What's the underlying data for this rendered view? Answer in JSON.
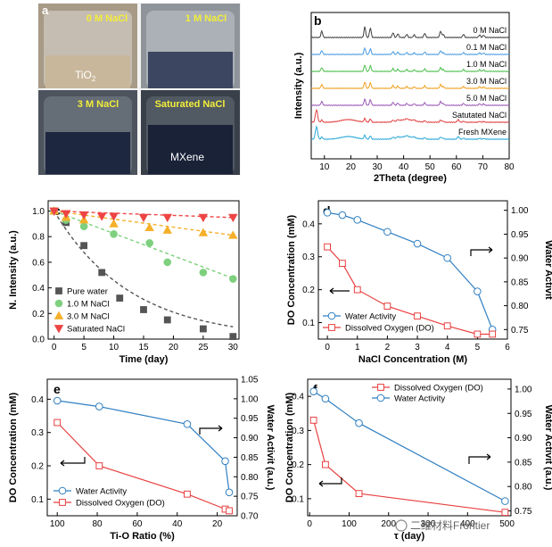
{
  "panel_a": {
    "letter": "a",
    "photos": [
      {
        "label": "0 M NaCl",
        "sublabel": "TiO",
        "subscript": "2",
        "bg": "#a79a86",
        "fill": "#c9b79b"
      },
      {
        "label": "1 M NaCl",
        "sublabel": "",
        "subscript": "",
        "bg": "#8e949a",
        "fill": "#3c4660"
      },
      {
        "label": "3 M NaCl",
        "sublabel": "",
        "subscript": "",
        "bg": "#4d545e",
        "fill": "#1e2740"
      },
      {
        "label": "Saturated NaCl",
        "sublabel": "MXene",
        "subscript": "",
        "bg": "#39404a",
        "fill": "#1a2238"
      }
    ],
    "label_color": "#f2ee3a"
  },
  "chart_data": [
    {
      "panel": "b",
      "type": "line",
      "title": "",
      "xlabel": "2Theta (degree)",
      "ylabel": "Intensity (a.u.)",
      "xlim": [
        5,
        80
      ],
      "xticks": [
        10,
        20,
        30,
        40,
        50,
        60,
        70,
        80
      ],
      "series": [
        {
          "name": "0 M NaCl",
          "color": "#404040"
        },
        {
          "name": "0.1 M NaCl",
          "color": "#4a9be0"
        },
        {
          "name": "1.0 M NaCl",
          "color": "#4cbf4c"
        },
        {
          "name": "3.0 M NaCl",
          "color": "#f0a020"
        },
        {
          "name": "5.0 M NaCl",
          "color": "#9b59b6"
        },
        {
          "name": "Satutated NaCl",
          "color": "#e04040"
        },
        {
          "name": "Fresh MXene",
          "color": "#2aa8d8"
        }
      ]
    },
    {
      "panel": "c",
      "type": "scatter",
      "title": "",
      "xlabel": "Time (day)",
      "ylabel": "N. Intensity (a.u.)",
      "xlim": [
        -1,
        31
      ],
      "ylim": [
        0,
        1.08
      ],
      "xticks": [
        0,
        5,
        10,
        15,
        20,
        25,
        30
      ],
      "yticks": [
        0.0,
        0.2,
        0.4,
        0.6,
        0.8,
        1.0
      ],
      "ytick_labels": [
        "0.0",
        "0.2",
        "0.4",
        "0.6",
        "0.8",
        "1.0"
      ],
      "series": [
        {
          "name": "Pure water",
          "color": "#555555",
          "marker": "square",
          "x": [
            0,
            2,
            5,
            8,
            11,
            15,
            19,
            25,
            30
          ],
          "y": [
            1.0,
            0.91,
            0.73,
            0.52,
            0.32,
            0.23,
            0.15,
            0.08,
            0.02
          ],
          "fit": {
            "type": "exp",
            "a": 1.0,
            "k": 0.078
          }
        },
        {
          "name": "1.0 M NaCl",
          "color": "#7ed07e",
          "marker": "circle",
          "x": [
            0,
            2,
            5,
            10,
            16,
            19,
            25,
            30
          ],
          "y": [
            1.0,
            0.93,
            0.88,
            0.82,
            0.75,
            0.6,
            0.52,
            0.47
          ],
          "fit": {
            "type": "linear",
            "a": 1.0,
            "b": -0.0175
          }
        },
        {
          "name": "3.0 M NaCl",
          "color": "#f5b02a",
          "marker": "triangle-up",
          "x": [
            0,
            2,
            5,
            10,
            16,
            19,
            25,
            30
          ],
          "y": [
            1.0,
            0.95,
            0.93,
            0.9,
            0.87,
            0.85,
            0.83,
            0.81
          ],
          "fit": {
            "type": "linear",
            "a": 1.0,
            "b": -0.0063
          }
        },
        {
          "name": "Saturated NaCl",
          "color": "#ee4444",
          "marker": "triangle-down",
          "x": [
            0,
            2,
            5,
            8,
            10,
            15,
            19,
            25,
            30
          ],
          "y": [
            1.0,
            0.98,
            0.97,
            0.96,
            0.96,
            0.95,
            0.95,
            0.95,
            0.95
          ],
          "fit": {
            "type": "linear",
            "a": 1.0,
            "b": -0.0017
          }
        }
      ]
    },
    {
      "panel": "d",
      "type": "line",
      "title": "",
      "xlabel": "NaCl Concentration (M)",
      "ylabel": "DO Concentration (mM)",
      "y2label": "Water Activit",
      "xlim": [
        -0.3,
        6
      ],
      "ylim": [
        0.05,
        0.47
      ],
      "y2lim": [
        0.73,
        1.02
      ],
      "xticks": [
        0,
        1,
        2,
        3,
        4,
        5,
        6
      ],
      "yticks": [
        0.1,
        0.2,
        0.3,
        0.4
      ],
      "y2ticks": [
        0.75,
        0.8,
        0.85,
        0.9,
        0.95,
        1.0
      ],
      "y2tick_labels": [
        "0.75",
        "0.80",
        "0.85",
        "0.90",
        "0.95",
        "1.00"
      ],
      "series": [
        {
          "name": "Water Activity",
          "color": "#2f7fc1",
          "marker": "circle",
          "axis": "y2",
          "x": [
            0,
            0.5,
            1,
            2,
            3,
            4,
            5,
            5.5
          ],
          "y": [
            0.995,
            0.99,
            0.98,
            0.955,
            0.93,
            0.9,
            0.83,
            0.75
          ]
        },
        {
          "name": "Dissolved Oxygen (DO)",
          "color": "#e84040",
          "marker": "square",
          "axis": "y",
          "x": [
            0,
            0.5,
            1,
            2,
            3,
            4,
            5,
            5.5
          ],
          "y": [
            0.33,
            0.28,
            0.2,
            0.15,
            0.12,
            0.09,
            0.065,
            0.065
          ]
        }
      ]
    },
    {
      "panel": "e",
      "type": "line",
      "title": "",
      "xlabel": "Ti-O Ratio (%)",
      "ylabel": "DO Concentration (mM)",
      "y2label": "Water Activit (a.u.)",
      "xlim": [
        105,
        10
      ],
      "ylim": [
        0.05,
        0.46
      ],
      "y2lim": [
        0.7,
        1.05
      ],
      "xticks": [
        100,
        80,
        60,
        40,
        20
      ],
      "yticks": [
        0.1,
        0.2,
        0.3,
        0.4
      ],
      "y2ticks": [
        0.7,
        0.75,
        0.8,
        0.85,
        0.9,
        0.95,
        1.0,
        1.05
      ],
      "y2tick_labels": [
        "0.70",
        "0.75",
        "0.80",
        "0.85",
        "0.90",
        "0.95",
        "1.00",
        "1.05"
      ],
      "series": [
        {
          "name": "Water Activity",
          "color": "#2f7fc1",
          "marker": "circle",
          "axis": "y2",
          "x": [
            100,
            79,
            35,
            16,
            14
          ],
          "y": [
            0.995,
            0.98,
            0.935,
            0.84,
            0.76
          ]
        },
        {
          "name": "Dissolved Oxygen (DO)",
          "color": "#e84040",
          "marker": "square",
          "axis": "y",
          "x": [
            100,
            79,
            35,
            16,
            14
          ],
          "y": [
            0.33,
            0.2,
            0.115,
            0.07,
            0.065
          ]
        }
      ]
    },
    {
      "panel": "f",
      "type": "line",
      "title": "",
      "xlabel": "τ (day)",
      "ylabel": "DO Concentration (mM)",
      "y2label": "Water Activit (a.u.)",
      "xlim": [
        -5,
        510
      ],
      "ylim": [
        0.05,
        0.45
      ],
      "y2lim": [
        0.74,
        1.02
      ],
      "xticks": [
        0,
        100,
        200,
        300,
        400,
        500
      ],
      "yticks": [
        0.1,
        0.2,
        0.3,
        0.4
      ],
      "y2ticks": [
        0.75,
        0.8,
        0.85,
        0.9,
        0.95,
        1.0
      ],
      "y2tick_labels": [
        "0.75",
        "0.80",
        "0.85",
        "0.90",
        "0.95",
        "1.00"
      ],
      "series": [
        {
          "name": "Dissolved Oxygen (DO)",
          "color": "#e84040",
          "marker": "square",
          "axis": "y",
          "x": [
            10,
            40,
            125,
            495
          ],
          "y": [
            0.33,
            0.2,
            0.115,
            0.06
          ]
        },
        {
          "name": "Water Activity",
          "color": "#2f7fc1",
          "marker": "circle",
          "axis": "y2",
          "x": [
            10,
            40,
            125,
            495
          ],
          "y": [
            0.995,
            0.98,
            0.93,
            0.77
          ]
        }
      ]
    }
  ],
  "watermark": "二维材料Frontier"
}
